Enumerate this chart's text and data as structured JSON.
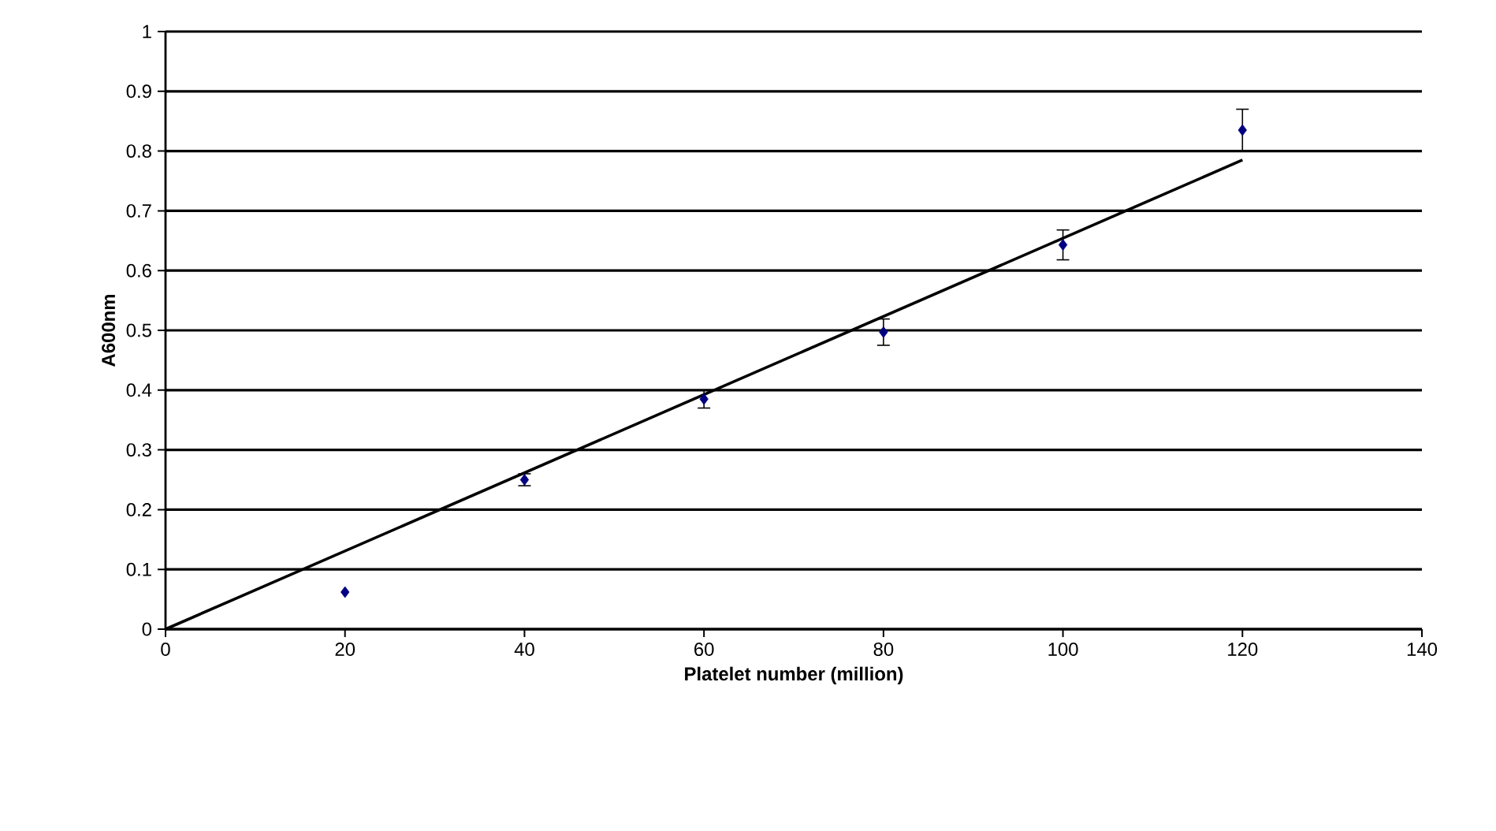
{
  "chart_data": {
    "type": "scatter",
    "xlabel": "Platelet number (million)",
    "ylabel": "A600nm",
    "xlim": [
      0,
      140
    ],
    "ylim": [
      0,
      1
    ],
    "xticks": [
      0,
      20,
      40,
      60,
      80,
      100,
      120,
      140
    ],
    "yticks": [
      0,
      0.1,
      0.2,
      0.3,
      0.4,
      0.5,
      0.6,
      0.7,
      0.8,
      0.9,
      1
    ],
    "grid": "y",
    "series": [
      {
        "marker": "diamond",
        "color": "#000080",
        "x": [
          20,
          40,
          60,
          80,
          100,
          120
        ],
        "values": [
          0.062,
          0.25,
          0.385,
          0.497,
          0.643,
          0.835
        ],
        "errors": [
          null,
          0.01,
          0.015,
          0.022,
          0.025,
          0.035
        ]
      },
      {
        "type": "line",
        "color": "#000000",
        "x": [
          0,
          120
        ],
        "values": [
          0,
          0.785
        ]
      }
    ]
  }
}
